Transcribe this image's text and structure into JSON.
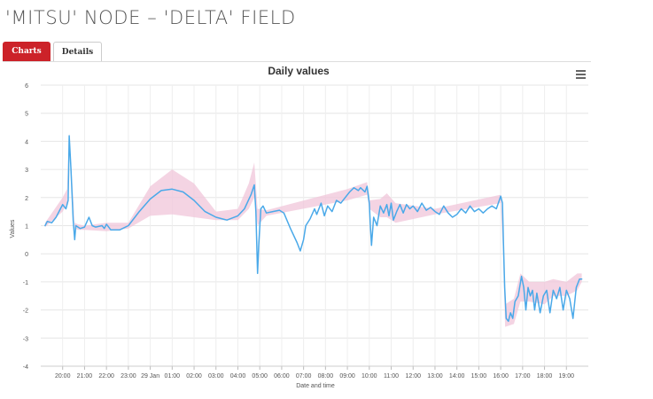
{
  "page": {
    "title": "'MITSU' NODE – 'DELTA' FIELD"
  },
  "tabs": [
    {
      "label": "Charts",
      "active": true
    },
    {
      "label": "Details",
      "active": false
    }
  ],
  "chart_data": {
    "type": "line",
    "title": "Daily values",
    "xlabel": "Date and time",
    "ylabel": "Values",
    "ylim": [
      -4,
      6
    ],
    "y_ticks": [
      "6",
      "5",
      "4",
      "3",
      "2",
      "1",
      "0",
      "-1",
      "-2",
      "-3",
      "-4"
    ],
    "x_ticks": [
      "20:00",
      "21:00",
      "22:00",
      "23:00",
      "29 Jan",
      "01:00",
      "02:00",
      "03:00",
      "04:00",
      "05:00",
      "06:00",
      "07:00",
      "08:00",
      "09:00",
      "10:00",
      "11:00",
      "12:00",
      "13:00",
      "14:00",
      "15:00",
      "16:00",
      "17:00",
      "18:00",
      "19:00"
    ],
    "grid": true,
    "series": [
      {
        "color": "#4aa9e9",
        "points": [
          [
            -0.8,
            1.0
          ],
          [
            -0.7,
            1.15
          ],
          [
            -0.5,
            1.1
          ],
          [
            -0.3,
            1.3
          ],
          [
            -0.1,
            1.6
          ],
          [
            0.0,
            1.75
          ],
          [
            0.15,
            1.6
          ],
          [
            0.25,
            1.9
          ],
          [
            0.3,
            4.2
          ],
          [
            0.38,
            3.0
          ],
          [
            0.48,
            1.2
          ],
          [
            0.55,
            0.5
          ],
          [
            0.6,
            1.0
          ],
          [
            0.8,
            0.9
          ],
          [
            1.0,
            0.95
          ],
          [
            1.2,
            1.3
          ],
          [
            1.35,
            1.0
          ],
          [
            1.5,
            0.95
          ],
          [
            1.8,
            1.0
          ],
          [
            1.9,
            0.9
          ],
          [
            2.0,
            1.05
          ],
          [
            2.2,
            0.85
          ],
          [
            2.6,
            0.85
          ],
          [
            3.0,
            1.0
          ],
          [
            3.5,
            1.5
          ],
          [
            4.0,
            1.95
          ],
          [
            4.5,
            2.25
          ],
          [
            5.0,
            2.3
          ],
          [
            5.5,
            2.2
          ],
          [
            6.0,
            1.9
          ],
          [
            6.5,
            1.5
          ],
          [
            7.0,
            1.3
          ],
          [
            7.5,
            1.2
          ],
          [
            8.0,
            1.35
          ],
          [
            8.3,
            1.6
          ],
          [
            8.6,
            2.1
          ],
          [
            8.75,
            2.45
          ],
          [
            8.82,
            1.5
          ],
          [
            8.9,
            -0.7
          ],
          [
            8.95,
            0.3
          ],
          [
            9.05,
            1.6
          ],
          [
            9.15,
            1.7
          ],
          [
            9.3,
            1.45
          ],
          [
            9.6,
            1.5
          ],
          [
            9.9,
            1.55
          ],
          [
            10.1,
            1.45
          ],
          [
            10.4,
            0.9
          ],
          [
            10.7,
            0.4
          ],
          [
            10.85,
            0.1
          ],
          [
            11.0,
            0.5
          ],
          [
            11.1,
            1.0
          ],
          [
            11.3,
            1.25
          ],
          [
            11.5,
            1.6
          ],
          [
            11.6,
            1.4
          ],
          [
            11.8,
            1.8
          ],
          [
            11.95,
            1.35
          ],
          [
            12.1,
            1.7
          ],
          [
            12.3,
            1.5
          ],
          [
            12.5,
            1.9
          ],
          [
            12.7,
            1.8
          ],
          [
            12.9,
            2.0
          ],
          [
            13.1,
            2.2
          ],
          [
            13.3,
            2.35
          ],
          [
            13.5,
            2.25
          ],
          [
            13.6,
            2.35
          ],
          [
            13.8,
            2.2
          ],
          [
            13.9,
            2.4
          ],
          [
            14.0,
            1.8
          ],
          [
            14.05,
            1.0
          ],
          [
            14.1,
            0.3
          ],
          [
            14.2,
            1.3
          ],
          [
            14.35,
            1.0
          ],
          [
            14.5,
            1.7
          ],
          [
            14.65,
            1.45
          ],
          [
            14.8,
            1.75
          ],
          [
            14.9,
            1.35
          ],
          [
            15.0,
            1.8
          ],
          [
            15.1,
            1.2
          ],
          [
            15.25,
            1.5
          ],
          [
            15.4,
            1.75
          ],
          [
            15.55,
            1.45
          ],
          [
            15.7,
            1.75
          ],
          [
            15.85,
            1.6
          ],
          [
            16.0,
            1.7
          ],
          [
            16.2,
            1.5
          ],
          [
            16.4,
            1.8
          ],
          [
            16.6,
            1.55
          ],
          [
            16.8,
            1.65
          ],
          [
            17.0,
            1.5
          ],
          [
            17.2,
            1.4
          ],
          [
            17.4,
            1.7
          ],
          [
            17.6,
            1.45
          ],
          [
            17.8,
            1.3
          ],
          [
            18.0,
            1.4
          ],
          [
            18.2,
            1.6
          ],
          [
            18.4,
            1.45
          ],
          [
            18.6,
            1.7
          ],
          [
            18.8,
            1.5
          ],
          [
            19.0,
            1.6
          ],
          [
            19.2,
            1.45
          ],
          [
            19.4,
            1.6
          ],
          [
            19.6,
            1.7
          ],
          [
            19.8,
            1.6
          ],
          [
            20.0,
            2.05
          ],
          [
            20.08,
            1.8
          ],
          [
            20.12,
            0.5
          ],
          [
            20.18,
            -1.2
          ],
          [
            20.25,
            -2.3
          ],
          [
            20.35,
            -2.4
          ],
          [
            20.45,
            -2.1
          ],
          [
            20.55,
            -2.3
          ],
          [
            20.65,
            -1.7
          ],
          [
            20.8,
            -1.5
          ],
          [
            20.95,
            -0.8
          ],
          [
            21.05,
            -1.2
          ],
          [
            21.15,
            -2.0
          ],
          [
            21.25,
            -1.2
          ],
          [
            21.35,
            -1.5
          ],
          [
            21.45,
            -1.3
          ],
          [
            21.55,
            -2.0
          ],
          [
            21.65,
            -1.4
          ],
          [
            21.8,
            -2.1
          ],
          [
            21.95,
            -1.5
          ],
          [
            22.1,
            -1.3
          ],
          [
            22.25,
            -2.1
          ],
          [
            22.4,
            -1.3
          ],
          [
            22.55,
            -1.6
          ],
          [
            22.7,
            -1.2
          ],
          [
            22.85,
            -2.0
          ],
          [
            23.0,
            -1.3
          ],
          [
            23.15,
            -1.6
          ],
          [
            23.3,
            -2.3
          ],
          [
            23.45,
            -1.2
          ],
          [
            23.6,
            -0.9
          ],
          [
            23.7,
            -0.9
          ]
        ]
      }
    ],
    "range_band": {
      "color": "#f0c6da",
      "upper": [
        [
          -0.8,
          1.1
        ],
        [
          0.0,
          2.0
        ],
        [
          0.2,
          2.3
        ],
        [
          0.3,
          4.3
        ],
        [
          0.55,
          1.1
        ],
        [
          0.7,
          1.05
        ],
        [
          1.0,
          1.0
        ],
        [
          2.0,
          1.1
        ],
        [
          3.0,
          1.1
        ],
        [
          4.0,
          2.4
        ],
        [
          5.0,
          3.0
        ],
        [
          6.0,
          2.5
        ],
        [
          7.0,
          1.5
        ],
        [
          8.0,
          1.6
        ],
        [
          8.5,
          2.5
        ],
        [
          8.75,
          3.25
        ],
        [
          8.9,
          1.6
        ],
        [
          9.3,
          1.55
        ],
        [
          13.0,
          2.3
        ],
        [
          13.9,
          2.55
        ],
        [
          14.0,
          1.9
        ],
        [
          14.5,
          1.95
        ],
        [
          14.8,
          2.15
        ],
        [
          15.2,
          1.8
        ],
        [
          17.0,
          1.6
        ],
        [
          20.0,
          2.1
        ],
        [
          20.1,
          1.0
        ],
        [
          20.2,
          -1.8
        ],
        [
          20.6,
          -1.6
        ],
        [
          20.9,
          -0.7
        ],
        [
          21.3,
          -1.0
        ],
        [
          22.0,
          -1.0
        ],
        [
          22.4,
          -0.9
        ],
        [
          23.0,
          -1.0
        ],
        [
          23.5,
          -0.7
        ],
        [
          23.7,
          -0.7
        ]
      ],
      "lower": [
        [
          23.7,
          -1.0
        ],
        [
          23.5,
          -1.3
        ],
        [
          23.0,
          -1.5
        ],
        [
          22.4,
          -1.5
        ],
        [
          22.0,
          -1.8
        ],
        [
          21.3,
          -1.7
        ],
        [
          20.9,
          -1.7
        ],
        [
          20.6,
          -2.5
        ],
        [
          20.2,
          -2.6
        ],
        [
          20.1,
          0.2
        ],
        [
          20.0,
          1.8
        ],
        [
          17.0,
          1.4
        ],
        [
          15.2,
          1.1
        ],
        [
          14.8,
          1.3
        ],
        [
          14.5,
          1.3
        ],
        [
          14.0,
          1.6
        ],
        [
          13.9,
          2.1
        ],
        [
          13.0,
          1.9
        ],
        [
          9.3,
          1.35
        ],
        [
          8.9,
          1.0
        ],
        [
          8.75,
          2.0
        ],
        [
          8.5,
          1.6
        ],
        [
          8.0,
          1.2
        ],
        [
          7.0,
          1.2
        ],
        [
          6.0,
          1.3
        ],
        [
          5.0,
          1.4
        ],
        [
          4.0,
          1.35
        ],
        [
          3.0,
          0.9
        ],
        [
          2.0,
          0.8
        ],
        [
          1.0,
          0.85
        ],
        [
          0.7,
          0.85
        ],
        [
          0.55,
          0.9
        ],
        [
          0.3,
          3.9
        ],
        [
          0.2,
          1.8
        ],
        [
          0.0,
          1.5
        ],
        [
          -0.8,
          0.95
        ]
      ]
    }
  }
}
